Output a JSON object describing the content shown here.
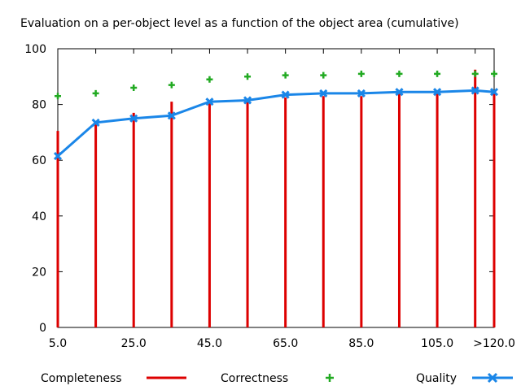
{
  "chart_data": {
    "type": "line",
    "title": "Evaluation on a per-object level as a function of the object area (cumulative)",
    "xlabel": "",
    "ylabel": "",
    "ylim": [
      0,
      100
    ],
    "x": [
      5,
      15,
      25,
      35,
      45,
      55,
      65,
      75,
      85,
      95,
      105,
      115,
      120
    ],
    "xticks": [
      {
        "value": 5,
        "label": "5.0"
      },
      {
        "value": 25,
        "label": "25.0"
      },
      {
        "value": 45,
        "label": "45.0"
      },
      {
        "value": 65,
        "label": "65.0"
      },
      {
        "value": 85,
        "label": "85.0"
      },
      {
        "value": 105,
        "label": "105.0"
      },
      {
        "value": 120,
        "label": ">120.0"
      }
    ],
    "yticks": [
      "0",
      "20",
      "40",
      "60",
      "80",
      "100"
    ],
    "series": [
      {
        "name": "Completeness",
        "style": "impulses",
        "color": "#dd0000",
        "values": [
          70.5,
          74,
          77,
          81,
          81,
          82,
          82.5,
          83,
          83,
          84,
          84,
          92.5,
          85
        ]
      },
      {
        "name": "Correctness",
        "style": "points",
        "color": "#22aa22",
        "values": [
          83,
          84,
          86,
          87,
          89,
          90,
          90.5,
          90.5,
          91,
          91,
          91,
          91,
          91
        ]
      },
      {
        "name": "Quality",
        "style": "linespoints",
        "color": "#1a86e8",
        "values": [
          61.5,
          73.5,
          75,
          76,
          81,
          81.5,
          83.5,
          84,
          84,
          84.5,
          84.5,
          85,
          84.5
        ]
      }
    ],
    "grid": false,
    "legend": "bottom"
  }
}
